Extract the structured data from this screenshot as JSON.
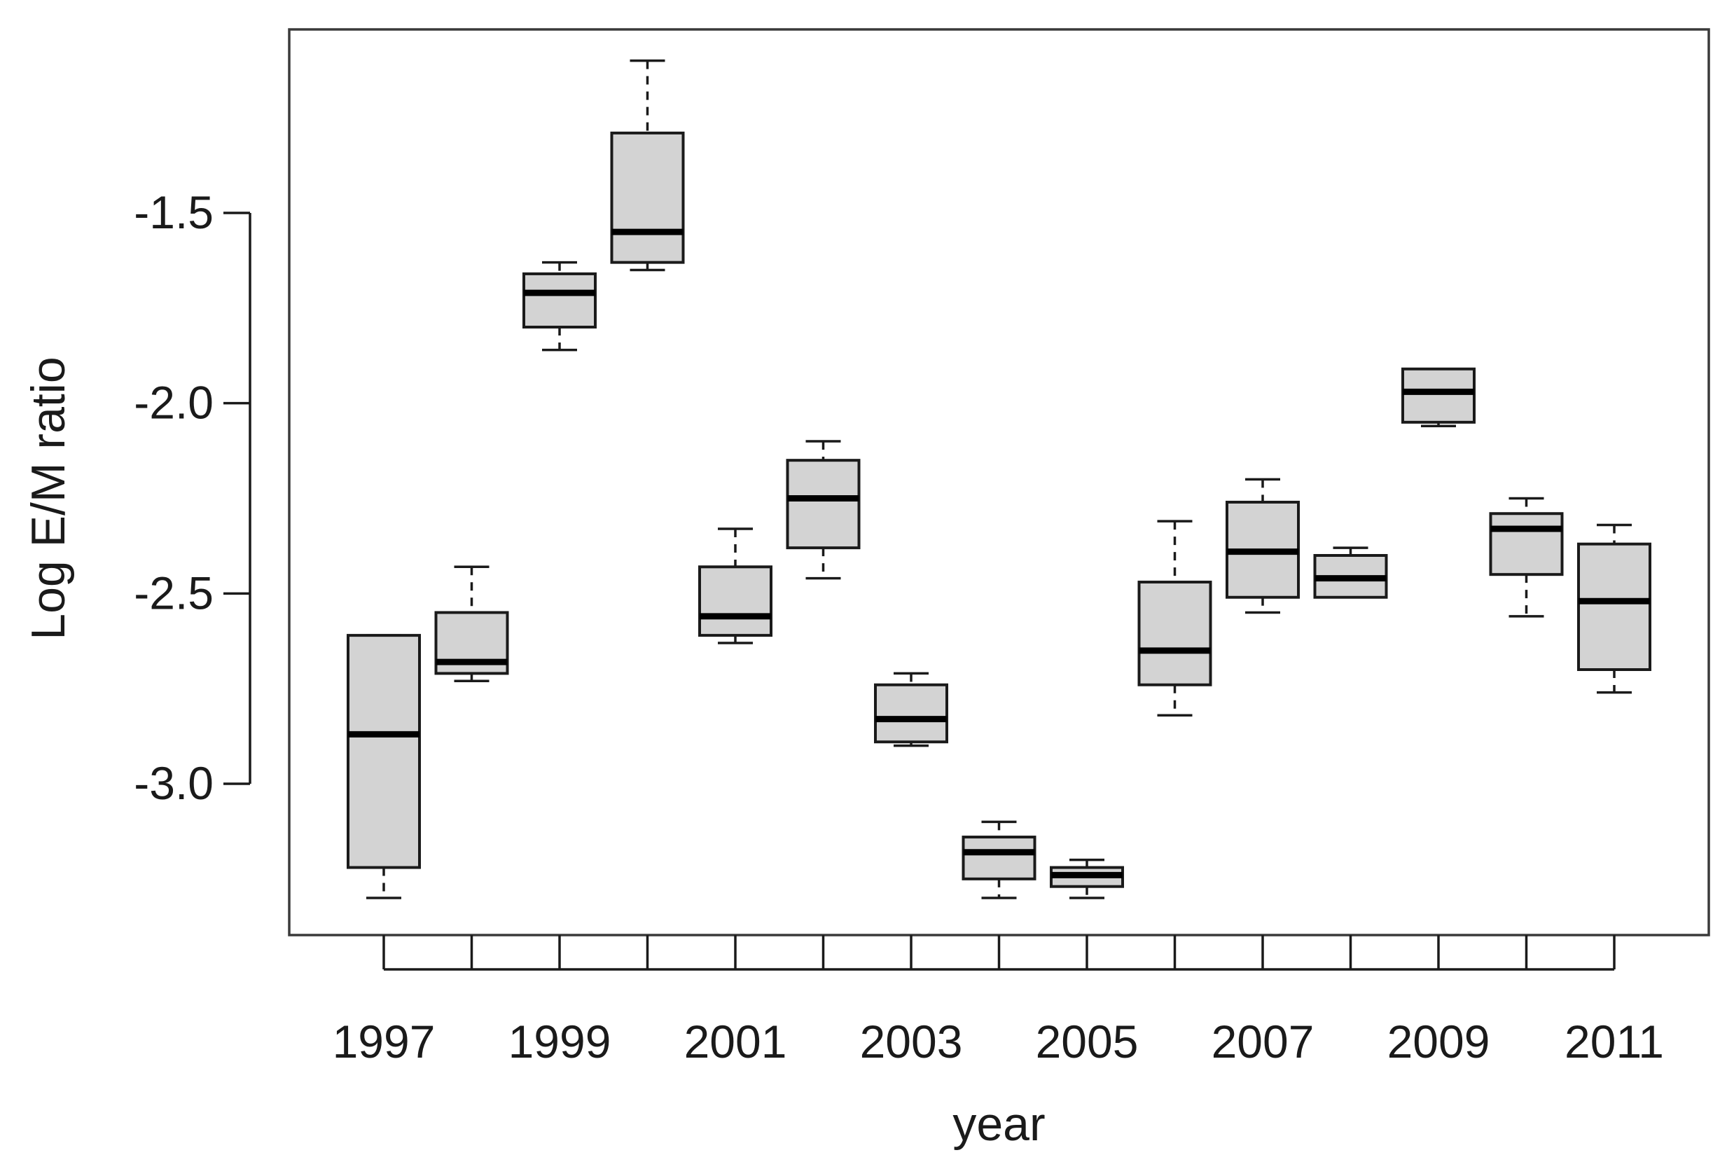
{
  "chart_data": {
    "type": "boxplot",
    "xlabel": "year",
    "ylabel": "Log E/M ratio",
    "ylim": [
      -3.4,
      -1.0
    ],
    "yticks": [
      -3.0,
      -2.5,
      -2.0,
      -1.5
    ],
    "ytick_labels": [
      "-3.0",
      "-2.5",
      "-2.0",
      "-1.5"
    ],
    "xtick_labels": [
      "1997",
      "",
      "1999",
      "",
      "2001",
      "",
      "2003",
      "",
      "2005",
      "",
      "2007",
      "",
      "2009",
      "",
      "2011"
    ],
    "grid": false,
    "legend": "none",
    "colors": {
      "box_fill": "#d3d3d3",
      "median": "#000000",
      "stroke": "#1a1a1a"
    },
    "categories": [
      "1997",
      "1998",
      "1999",
      "2000",
      "2001",
      "2002",
      "2003",
      "2004",
      "2005",
      "2006",
      "2007",
      "2008",
      "2009",
      "2010",
      "2011"
    ],
    "boxes": [
      {
        "category": "1997",
        "min": -3.3,
        "q1": -3.22,
        "median": -2.87,
        "q3": -2.61,
        "max": -2.61
      },
      {
        "category": "1998",
        "min": -2.73,
        "q1": -2.71,
        "median": -2.68,
        "q3": -2.55,
        "max": -2.43
      },
      {
        "category": "1999",
        "min": -1.86,
        "q1": -1.8,
        "median": -1.71,
        "q3": -1.66,
        "max": -1.63
      },
      {
        "category": "2000",
        "min": -1.65,
        "q1": -1.63,
        "median": -1.55,
        "q3": -1.29,
        "max": -1.1
      },
      {
        "category": "2001",
        "min": -2.63,
        "q1": -2.61,
        "median": -2.56,
        "q3": -2.43,
        "max": -2.33
      },
      {
        "category": "2002",
        "min": -2.46,
        "q1": -2.38,
        "median": -2.25,
        "q3": -2.15,
        "max": -2.1
      },
      {
        "category": "2003",
        "min": -2.9,
        "q1": -2.89,
        "median": -2.83,
        "q3": -2.74,
        "max": -2.71
      },
      {
        "category": "2004",
        "min": -3.3,
        "q1": -3.25,
        "median": -3.18,
        "q3": -3.14,
        "max": -3.1
      },
      {
        "category": "2005",
        "min": -3.3,
        "q1": -3.27,
        "median": -3.24,
        "q3": -3.22,
        "max": -3.2
      },
      {
        "category": "2006",
        "min": -2.82,
        "q1": -2.74,
        "median": -2.65,
        "q3": -2.47,
        "max": -2.31
      },
      {
        "category": "2007",
        "min": -2.55,
        "q1": -2.51,
        "median": -2.39,
        "q3": -2.26,
        "max": -2.2
      },
      {
        "category": "2008",
        "min": -2.51,
        "q1": -2.51,
        "median": -2.46,
        "q3": -2.4,
        "max": -2.38
      },
      {
        "category": "2009",
        "min": -2.06,
        "q1": -2.05,
        "median": -1.97,
        "q3": -1.91,
        "max": -1.91
      },
      {
        "category": "2010",
        "min": -2.56,
        "q1": -2.45,
        "median": -2.33,
        "q3": -2.29,
        "max": -2.25
      },
      {
        "category": "2011",
        "min": -2.76,
        "q1": -2.7,
        "median": -2.52,
        "q3": -2.37,
        "max": -2.32
      }
    ]
  }
}
